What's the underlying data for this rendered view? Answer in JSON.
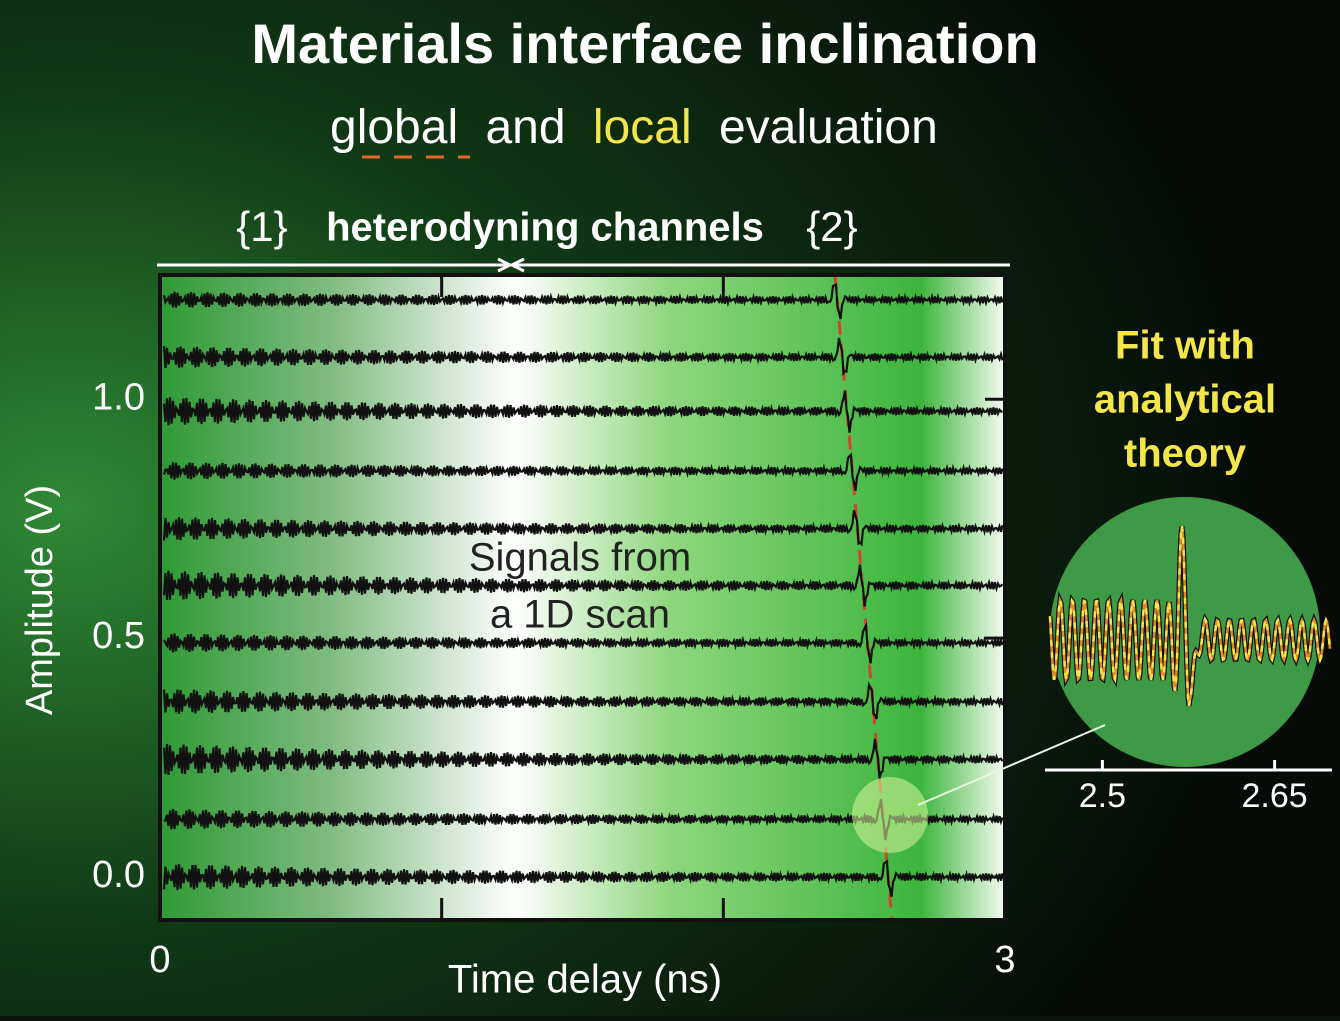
{
  "title": "Materials interface inclination",
  "subtitle": [
    "global",
    "and",
    "local",
    "evaluation"
  ],
  "main_plot": {
    "bracket_left": "{1}",
    "bracket_label": "heterodyning channels",
    "bracket_right": "{2}",
    "annotation": [
      "Signals from",
      "a 1D scan"
    ],
    "xlabel": "Time delay (ns)",
    "ylabel": "Amplitude (V)",
    "xlim": [
      0,
      3
    ],
    "xticks": [
      0,
      3
    ],
    "minor_xticks": [
      1,
      2
    ],
    "ylim": [
      -0.09,
      1.26
    ],
    "yticks": [
      {
        "value": 0,
        "label": "0.0"
      },
      {
        "value": 0.5,
        "label": "0.5"
      },
      {
        "value": 1,
        "label": "1.0"
      }
    ],
    "trace_offsets": [
      1.208,
      1.088,
      0.975,
      0.85,
      0.729,
      0.61,
      0.49,
      0.367,
      0.246,
      0.121,
      0
    ]
  },
  "inset": {
    "title": [
      "Fit with",
      "analytical",
      "theory"
    ],
    "xlim": [
      2.45,
      2.7
    ],
    "xticks": [
      2.5,
      2.65
    ]
  }
}
